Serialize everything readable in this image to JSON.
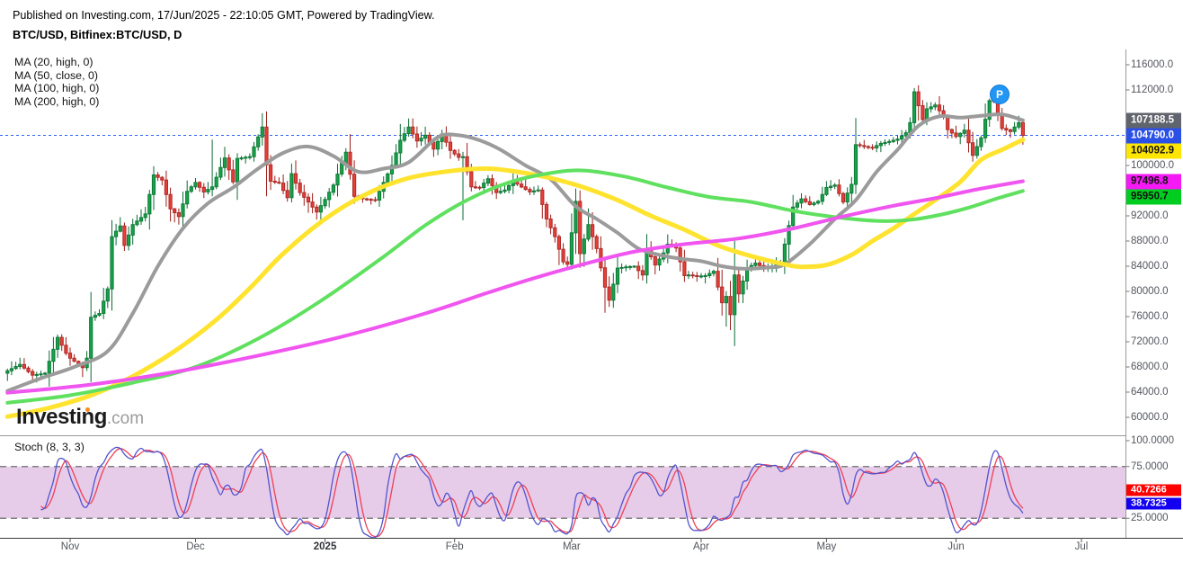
{
  "header": {
    "published_line": "Published on Investing.com, 17/Jun/2025 - 22:10:05 GMT, Powered by TradingView.",
    "symbol_line": "BTC/USD, Bitfinex:BTC/USD, D"
  },
  "legend": {
    "items": [
      "MA (20, high, 0)",
      "MA (50, close, 0)",
      "MA (100, high, 0)",
      "MA (200, high, 0)"
    ]
  },
  "logo": {
    "brand": "Investing",
    "suffix": ".com"
  },
  "publication_marker": {
    "label": "P"
  },
  "price_axis": {
    "ticks": [
      116000,
      112000,
      100000,
      92000,
      88000,
      84000,
      80000,
      76000,
      72000,
      68000,
      64000,
      60000
    ],
    "badges": [
      {
        "text": "107188.5",
        "value": 107188.5,
        "bg": "#60646c",
        "fg": "#ffffff"
      },
      {
        "text": "104790.0",
        "value": 104790.0,
        "bg": "#2b50e8",
        "fg": "#ffffff"
      },
      {
        "text": "104092.9",
        "value": 104092.9,
        "bg": "#ffe600",
        "fg": "#111111"
      },
      {
        "text": "97496.8",
        "value": 97496.8,
        "bg": "#f519f5",
        "fg": "#111111"
      },
      {
        "text": "95950.7",
        "value": 95950.7,
        "bg": "#00cd1f",
        "fg": "#111111"
      }
    ]
  },
  "time_axis": {
    "months": [
      {
        "label": "Nov",
        "day": 15,
        "bold": false
      },
      {
        "label": "Dec",
        "day": 45,
        "bold": false
      },
      {
        "label": "2025",
        "day": 76,
        "bold": true
      },
      {
        "label": "Feb",
        "day": 107,
        "bold": false
      },
      {
        "label": "Mar",
        "day": 135,
        "bold": false
      },
      {
        "label": "Apr",
        "day": 166,
        "bold": false
      },
      {
        "label": "May",
        "day": 196,
        "bold": false
      },
      {
        "label": "Jun",
        "day": 227,
        "bold": false
      },
      {
        "label": "Jul",
        "day": 257,
        "bold": false
      }
    ]
  },
  "stoch_panel": {
    "label": "Stoch (8, 3, 3)",
    "ticks": [
      100,
      75,
      25
    ],
    "band": [
      25,
      75
    ],
    "badges": [
      {
        "text": "40.7266",
        "value": 40.7266,
        "bg": "#ff0000",
        "fg": "#ffffff"
      },
      {
        "text": "38.7325",
        "value": 38.7325,
        "bg": "#1400f0",
        "fg": "#ffffff"
      }
    ],
    "k_color": "#5254cf",
    "d_color": "#ef4055",
    "band_color": "#e7cce9",
    "band_border_color": "#808080"
  },
  "colors": {
    "candle_up": "#16a34a",
    "candle_up_border": "#0e7a37",
    "candle_up_wick": "#0b6b35",
    "candle_down": "#e5403a",
    "candle_down_border": "#b02a26",
    "candle_down_wick": "#9c1f1a",
    "price_line": "#2962ff",
    "axis_line": "#999999",
    "bottom_axis_line": "#3a3a3a"
  },
  "chart_data": {
    "type": "candlestick",
    "title": "BTC/USD, Bitfinex:BTC/USD, D",
    "symbol": "BTC/USD",
    "exchange": "Bitfinex",
    "interval": "D",
    "start_date": "2024-10-17",
    "end_date": "2025-06-17",
    "last_price": 104790.0,
    "ylim": [
      60000,
      116000
    ],
    "grid": false,
    "legend_position": "top-left",
    "first_open": 67000,
    "price_keyframes": [
      [
        0,
        67400
      ],
      [
        3,
        68400
      ],
      [
        6,
        66700
      ],
      [
        9,
        67000
      ],
      [
        12,
        72700
      ],
      [
        14,
        70200
      ],
      [
        15,
        69400
      ],
      [
        18,
        67900
      ],
      [
        19,
        69400
      ],
      [
        20,
        75900
      ],
      [
        22,
        76500
      ],
      [
        24,
        80400
      ],
      [
        25,
        88700
      ],
      [
        27,
        90400
      ],
      [
        28,
        87300
      ],
      [
        30,
        90600
      ],
      [
        33,
        92300
      ],
      [
        35,
        98500
      ],
      [
        37,
        97700
      ],
      [
        39,
        93100
      ],
      [
        41,
        91900
      ],
      [
        43,
        95900
      ],
      [
        45,
        97300
      ],
      [
        47,
        95800
      ],
      [
        49,
        96600
      ],
      [
        52,
        101200
      ],
      [
        54,
        97400
      ],
      [
        55,
        101100
      ],
      [
        58,
        101400
      ],
      [
        61,
        106100
      ],
      [
        62,
        100100
      ],
      [
        63,
        97500
      ],
      [
        65,
        97200
      ],
      [
        67,
        94900
      ],
      [
        68,
        98700
      ],
      [
        70,
        95700
      ],
      [
        72,
        94200
      ],
      [
        74,
        92600
      ],
      [
        76,
        94600
      ],
      [
        78,
        96900
      ],
      [
        81,
        102100
      ],
      [
        83,
        95100
      ],
      [
        85,
        94700
      ],
      [
        88,
        94500
      ],
      [
        90,
        97300
      ],
      [
        92,
        100000
      ],
      [
        94,
        104000
      ],
      [
        96,
        106100
      ],
      [
        98,
        103900
      ],
      [
        100,
        104800
      ],
      [
        102,
        102600
      ],
      [
        104,
        105000
      ],
      [
        106,
        102400
      ],
      [
        108,
        101300
      ],
      [
        109,
        101400
      ],
      [
        111,
        96600
      ],
      [
        113,
        96500
      ],
      [
        115,
        97900
      ],
      [
        117,
        95700
      ],
      [
        119,
        96100
      ],
      [
        121,
        97500
      ],
      [
        123,
        96600
      ],
      [
        125,
        95800
      ],
      [
        127,
        96100
      ],
      [
        129,
        91500
      ],
      [
        131,
        88700
      ],
      [
        133,
        84700
      ],
      [
        134,
        84300
      ],
      [
        136,
        94300
      ],
      [
        137,
        86000
      ],
      [
        139,
        90600
      ],
      [
        141,
        86800
      ],
      [
        143,
        80700
      ],
      [
        144,
        78600
      ],
      [
        146,
        83700
      ],
      [
        148,
        83900
      ],
      [
        150,
        84000
      ],
      [
        152,
        82600
      ],
      [
        153,
        86800
      ],
      [
        155,
        84200
      ],
      [
        157,
        86100
      ],
      [
        158,
        87500
      ],
      [
        160,
        86900
      ],
      [
        162,
        82500
      ],
      [
        163,
        82600
      ],
      [
        165,
        82400
      ],
      [
        167,
        82500
      ],
      [
        169,
        83200
      ],
      [
        171,
        78200
      ],
      [
        172,
        79200
      ],
      [
        173,
        76300
      ],
      [
        174,
        82600
      ],
      [
        175,
        79600
      ],
      [
        177,
        83700
      ],
      [
        179,
        84500
      ],
      [
        181,
        83700
      ],
      [
        183,
        84000
      ],
      [
        185,
        84600
      ],
      [
        186,
        87500
      ],
      [
        188,
        93400
      ],
      [
        190,
        94700
      ],
      [
        192,
        93800
      ],
      [
        194,
        94300
      ],
      [
        196,
        96500
      ],
      [
        198,
        96900
      ],
      [
        200,
        94200
      ],
      [
        202,
        97000
      ],
      [
        203,
        103300
      ],
      [
        205,
        103000
      ],
      [
        207,
        102800
      ],
      [
        209,
        103500
      ],
      [
        211,
        103800
      ],
      [
        213,
        104200
      ],
      [
        215,
        105200
      ],
      [
        216,
        106800
      ],
      [
        217,
        111700
      ],
      [
        219,
        107300
      ],
      [
        220,
        109000
      ],
      [
        222,
        109600
      ],
      [
        224,
        107800
      ],
      [
        225,
        105700
      ],
      [
        227,
        104600
      ],
      [
        229,
        105600
      ],
      [
        231,
        101600
      ],
      [
        233,
        104400
      ],
      [
        235,
        110300
      ],
      [
        236,
        110200
      ],
      [
        238,
        105900
      ],
      [
        240,
        105400
      ],
      [
        242,
        106800
      ],
      [
        243,
        104790
      ]
    ],
    "wick_overrides": {
      "49": [
        104100,
        null
      ],
      "61": [
        108300,
        null
      ],
      "109": [
        null,
        91300
      ],
      "143": [
        null,
        76600
      ],
      "172": [
        null,
        74400
      ],
      "217": [
        112300,
        null
      ],
      "235": [
        110600,
        null
      ],
      "243": [
        107400,
        103300
      ]
    },
    "moving_averages": [
      {
        "name": "MA 20 high",
        "color": "#9b9b9b",
        "width": 4,
        "current": 107188.5,
        "points": [
          [
            0,
            64200
          ],
          [
            8,
            66200
          ],
          [
            16,
            68000
          ],
          [
            24,
            70500
          ],
          [
            30,
            76500
          ],
          [
            36,
            84000
          ],
          [
            42,
            90000
          ],
          [
            48,
            94000
          ],
          [
            54,
            96500
          ],
          [
            60,
            99500
          ],
          [
            66,
            102000
          ],
          [
            72,
            103000
          ],
          [
            78,
            101500
          ],
          [
            84,
            99000
          ],
          [
            90,
            99500
          ],
          [
            96,
            100500
          ],
          [
            103,
            104500
          ],
          [
            108,
            104800
          ],
          [
            113,
            104000
          ],
          [
            118,
            102500
          ],
          [
            124,
            100000
          ],
          [
            130,
            97800
          ],
          [
            136,
            93500
          ],
          [
            141,
            91500
          ],
          [
            146,
            89300
          ],
          [
            151,
            86800
          ],
          [
            156,
            85800
          ],
          [
            161,
            85200
          ],
          [
            166,
            84800
          ],
          [
            171,
            84000
          ],
          [
            176,
            83600
          ],
          [
            182,
            83800
          ],
          [
            186,
            84300
          ],
          [
            192,
            87500
          ],
          [
            198,
            91500
          ],
          [
            203,
            94500
          ],
          [
            208,
            99000
          ],
          [
            213,
            102500
          ],
          [
            218,
            106300
          ],
          [
            223,
            107800
          ],
          [
            228,
            107600
          ],
          [
            233,
            107900
          ],
          [
            238,
            108100
          ],
          [
            243,
            107188
          ]
        ]
      },
      {
        "name": "MA 50 close",
        "color": "#ffe32e",
        "width": 5,
        "current": 104092.9,
        "points": [
          [
            0,
            60100
          ],
          [
            10,
            61500
          ],
          [
            20,
            63500
          ],
          [
            30,
            66500
          ],
          [
            40,
            70500
          ],
          [
            50,
            75500
          ],
          [
            58,
            80500
          ],
          [
            66,
            86000
          ],
          [
            76,
            91500
          ],
          [
            86,
            95500
          ],
          [
            96,
            98000
          ],
          [
            107,
            99200
          ],
          [
            115,
            99500
          ],
          [
            122,
            99000
          ],
          [
            130,
            98000
          ],
          [
            138,
            96500
          ],
          [
            146,
            94500
          ],
          [
            154,
            92000
          ],
          [
            162,
            89800
          ],
          [
            170,
            87300
          ],
          [
            178,
            85600
          ],
          [
            186,
            84300
          ],
          [
            190,
            83900
          ],
          [
            196,
            84200
          ],
          [
            202,
            85800
          ],
          [
            207,
            88000
          ],
          [
            212,
            90000
          ],
          [
            217,
            92300
          ],
          [
            222,
            94500
          ],
          [
            228,
            97400
          ],
          [
            233,
            100900
          ],
          [
            238,
            102500
          ],
          [
            243,
            104093
          ]
        ]
      },
      {
        "name": "MA 100 high",
        "color": "#5fe05f",
        "width": 4,
        "current": 95950.7,
        "points": [
          [
            0,
            62300
          ],
          [
            15,
            63500
          ],
          [
            30,
            65500
          ],
          [
            45,
            68000
          ],
          [
            60,
            72500
          ],
          [
            75,
            78500
          ],
          [
            90,
            85500
          ],
          [
            100,
            90500
          ],
          [
            110,
            94500
          ],
          [
            120,
            97300
          ],
          [
            130,
            98800
          ],
          [
            138,
            99200
          ],
          [
            148,
            98200
          ],
          [
            158,
            96500
          ],
          [
            168,
            95000
          ],
          [
            178,
            94200
          ],
          [
            188,
            92800
          ],
          [
            198,
            91800
          ],
          [
            208,
            91200
          ],
          [
            215,
            91300
          ],
          [
            222,
            92000
          ],
          [
            230,
            93300
          ],
          [
            237,
            94800
          ],
          [
            243,
            95951
          ]
        ]
      },
      {
        "name": "MA 200 high",
        "color": "#f055f0",
        "width": 4,
        "current": 97496.8,
        "points": [
          [
            0,
            63900
          ],
          [
            20,
            65200
          ],
          [
            40,
            67200
          ],
          [
            60,
            69800
          ],
          [
            80,
            72800
          ],
          [
            100,
            76500
          ],
          [
            115,
            79800
          ],
          [
            127,
            82300
          ],
          [
            140,
            84700
          ],
          [
            150,
            86300
          ],
          [
            162,
            87500
          ],
          [
            175,
            88400
          ],
          [
            188,
            90000
          ],
          [
            200,
            91900
          ],
          [
            212,
            93600
          ],
          [
            222,
            94800
          ],
          [
            232,
            96200
          ],
          [
            243,
            97497
          ]
        ]
      }
    ],
    "stochastic": {
      "params": [
        8,
        3,
        3
      ],
      "d_current": 40.7266,
      "k_current": 38.7325,
      "band": [
        25,
        75
      ]
    }
  }
}
